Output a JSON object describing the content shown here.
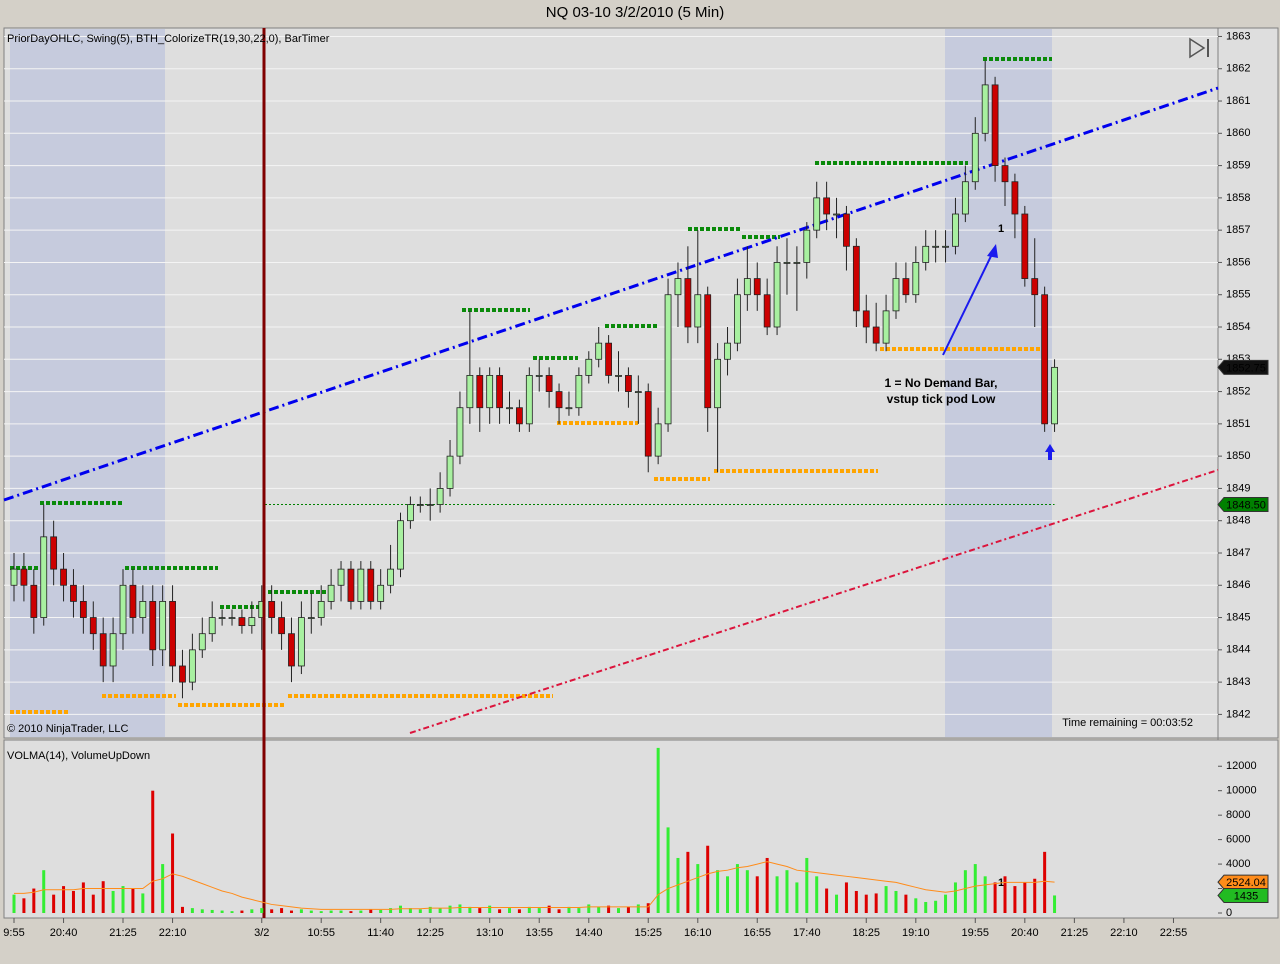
{
  "window_title": "NQ 03-10  3/2/2010 (5 Min)",
  "chart_data": [
    {
      "type": "candlestick",
      "title": "PriorDayOHLC, Swing(5), BTH_ColorizeTR(19,30,22,0), BarTimer",
      "copyright": "© 2010 NinjaTrader, LLC",
      "bar_timer": "Time remaining = 00:03:52",
      "annotations": [
        "1 = No Demand Bar,",
        "vstup tick pod Low",
        "1"
      ],
      "up_color": "#a8f0a0",
      "down_color": "#cc0000",
      "ylim": [
        1841.3,
        1863.2
      ],
      "yticks": [
        1842,
        1843,
        1844,
        1845,
        1846,
        1847,
        1848,
        1849,
        1850,
        1851,
        1852,
        1853,
        1854,
        1855,
        1856,
        1857,
        1858,
        1859,
        1860,
        1861,
        1862,
        1863
      ],
      "grid": true,
      "reference_line": {
        "value": 1848.5,
        "label": "1848.50",
        "color": "#008000"
      },
      "open": [
        1846,
        1846.5,
        1846,
        1845,
        1847.5,
        1846.5,
        1846,
        1845.5,
        1845,
        1844.5,
        1843.5,
        1844.5,
        1846,
        1845,
        1845.5,
        1844,
        1845.5,
        1843.5,
        1843,
        1844,
        1844.5,
        1845,
        1845,
        1845,
        1844.75,
        1845,
        1845.5,
        1845,
        1844.5,
        1843.5,
        1845,
        1845,
        1845.5,
        1846,
        1846.5,
        1845.5,
        1846.5,
        1845.5,
        1846,
        1846.5,
        1848,
        1848.5,
        1848.5,
        1848.5,
        1849,
        1850,
        1851.5,
        1852.5,
        1851.5,
        1852.5,
        1851.5,
        1851.5,
        1851,
        1852.5,
        1852.5,
        1852,
        1851.5,
        1851.5,
        1852.5,
        1853,
        1853.5,
        1852.5,
        1852.5,
        1852,
        1852,
        1850,
        1851,
        1855,
        1855.5,
        1854,
        1855,
        1851.5,
        1853,
        1853.5,
        1855,
        1855.5,
        1855,
        1854,
        1856,
        1856,
        1856,
        1857,
        1858,
        1857.5,
        1857.5,
        1856.5,
        1854.5,
        1854,
        1853.5,
        1854.5,
        1855.5,
        1855,
        1856,
        1856.5,
        1856.5,
        1856.5,
        1857.5,
        1858.5,
        1860,
        1861.5,
        1859,
        1858.5,
        1857.5,
        1855.5,
        1855,
        1851,
        null,
        null,
        null,
        null,
        null,
        null,
        null,
        null,
        null,
        null,
        null,
        null,
        null,
        null,
        null,
        null
      ],
      "high": [
        1847,
        1847,
        1846.5,
        1848.5,
        1848,
        1847,
        1846.5,
        1846,
        1845.5,
        1845,
        1845,
        1846.5,
        1846.5,
        1846,
        1846,
        1846,
        1846,
        1844,
        1844.5,
        1845,
        1845.5,
        1845.25,
        1845.25,
        1845.25,
        1845.5,
        1846,
        1846,
        1845.5,
        1845,
        1845.5,
        1845.75,
        1846,
        1846.5,
        1846.75,
        1846.75,
        1846.75,
        1846.75,
        1846.5,
        1847.25,
        1848.25,
        1848.75,
        1848.75,
        1849,
        1849.5,
        1850.5,
        1852,
        1854.5,
        1852.75,
        1852.75,
        1852.75,
        1852,
        1851.75,
        1852.75,
        1853,
        1852.75,
        1852.25,
        1852,
        1852.75,
        1853.25,
        1854,
        1853.75,
        1853.25,
        1852.75,
        1852.5,
        1852.25,
        1851.5,
        1855.5,
        1856,
        1856.5,
        1857,
        1855.25,
        1853.5,
        1854,
        1855.5,
        1856.5,
        1856,
        1855.5,
        1856.5,
        1856.75,
        1856.5,
        1857.25,
        1858.5,
        1858.5,
        1858,
        1857.75,
        1856.75,
        1855,
        1854.75,
        1855,
        1856,
        1856,
        1856.5,
        1857,
        1857,
        1857,
        1858,
        1859,
        1860.5,
        1862.25,
        1861.75,
        1859.25,
        1858.75,
        1857.75,
        1856.75,
        1855.25,
        1853,
        null,
        null,
        null,
        null,
        null,
        null,
        null,
        null,
        null,
        null,
        null,
        null,
        null,
        null,
        null,
        null
      ],
      "low": [
        1845.5,
        1845.5,
        1844.5,
        1844.75,
        1846,
        1845.5,
        1845,
        1844.5,
        1844,
        1843,
        1843,
        1844,
        1844.5,
        1844.5,
        1843.5,
        1843.5,
        1843,
        1842.5,
        1842.75,
        1843.75,
        1844.25,
        1844.75,
        1844.75,
        1844.5,
        1844.5,
        1844,
        1844.5,
        1844,
        1843,
        1843.25,
        1844.5,
        1844.75,
        1845.25,
        1845.5,
        1845.25,
        1845.25,
        1845.25,
        1845.25,
        1845.75,
        1846.25,
        1847.75,
        1848.25,
        1848,
        1848.25,
        1848.75,
        1849.75,
        1851,
        1850.75,
        1851,
        1851,
        1851,
        1850.75,
        1850.75,
        1852,
        1851.5,
        1851,
        1851.25,
        1851.25,
        1852.25,
        1852.75,
        1852.25,
        1852,
        1851.5,
        1851,
        1849.5,
        1849.75,
        1850.75,
        1854,
        1853.5,
        1853.5,
        1850.75,
        1849.5,
        1852.5,
        1853.25,
        1854.5,
        1854.5,
        1853.75,
        1853.75,
        1855,
        1854.5,
        1855.5,
        1856.75,
        1857,
        1856.75,
        1855.75,
        1854,
        1853.5,
        1853.25,
        1853.25,
        1854.25,
        1854.75,
        1854.75,
        1855.75,
        1856,
        1856,
        1856.25,
        1857.25,
        1858.25,
        1859.75,
        1858.5,
        1857.75,
        1856.75,
        1855.25,
        1854,
        1850.75,
        1850.75,
        null,
        null,
        null,
        null,
        null,
        null,
        null,
        null,
        null,
        null,
        null,
        null,
        null,
        null,
        null,
        null
      ],
      "close": [
        1846.5,
        1846,
        1845,
        1847.5,
        1846.5,
        1846,
        1845.5,
        1845,
        1844.5,
        1843.5,
        1844.5,
        1846,
        1845,
        1845.5,
        1844,
        1845.5,
        1843.5,
        1843,
        1844,
        1844.5,
        1845,
        1845,
        1845,
        1844.75,
        1845,
        1845.5,
        1845,
        1844.5,
        1843.5,
        1845,
        1845,
        1845.5,
        1846,
        1846.5,
        1845.5,
        1846.5,
        1845.5,
        1846,
        1846.5,
        1848,
        1848.5,
        1848.5,
        1848.5,
        1849,
        1850,
        1851.5,
        1852.5,
        1851.5,
        1852.5,
        1851.5,
        1851.5,
        1851,
        1852.5,
        1852.5,
        1852,
        1851.5,
        1851.5,
        1852.5,
        1853,
        1853.5,
        1852.5,
        1852.5,
        1852,
        1852,
        1850,
        1851,
        1855,
        1855.5,
        1854,
        1855,
        1851.5,
        1853,
        1853.5,
        1855,
        1855.5,
        1855,
        1854,
        1856,
        1856,
        1856,
        1857,
        1858,
        1857.5,
        1857.5,
        1856.5,
        1854.5,
        1854,
        1853.5,
        1854.5,
        1855.5,
        1855,
        1856,
        1856.5,
        1856.5,
        1856.5,
        1857.5,
        1858.5,
        1860,
        1861.5,
        1859,
        1858.5,
        1857.5,
        1855.5,
        1855,
        1851,
        1852.75,
        null,
        null,
        null,
        null,
        null,
        null,
        null,
        null,
        null,
        null,
        null,
        null,
        null,
        null,
        null,
        null
      ]
    },
    {
      "type": "bar",
      "title": "VOLMA(14), VolumeUpDown",
      "annotations": [
        "1"
      ],
      "up_color": "#33ee33",
      "down_color": "#dd0000",
      "ylim": [
        0,
        13900
      ],
      "yticks": [
        0,
        2000,
        4000,
        6000,
        8000,
        10000,
        12000
      ],
      "grid": true,
      "categories": [
        "9:55",
        null,
        null,
        null,
        null,
        "20:40",
        null,
        null,
        null,
        null,
        null,
        "21:25",
        null,
        null,
        null,
        null,
        "22:10",
        null,
        null,
        null,
        null,
        null,
        null,
        null,
        null,
        "3/2",
        null,
        null,
        null,
        null,
        null,
        "10:55",
        null,
        null,
        null,
        null,
        null,
        "11:40",
        null,
        null,
        null,
        null,
        "12:25",
        null,
        null,
        null,
        null,
        null,
        "13:10",
        null,
        null,
        null,
        null,
        "13:55",
        null,
        null,
        null,
        null,
        "14:40",
        null,
        null,
        null,
        null,
        null,
        "15:25",
        null,
        null,
        null,
        null,
        "16:10",
        null,
        null,
        null,
        null,
        null,
        "16:55",
        null,
        null,
        null,
        null,
        "17:40",
        null,
        null,
        null,
        null,
        null,
        "18:25",
        null,
        null,
        null,
        null,
        "19:10",
        null,
        null,
        null,
        null,
        null,
        "19:55",
        null,
        null,
        null,
        null,
        "20:40",
        null,
        null,
        null,
        null,
        "21:25",
        null,
        null,
        null,
        null,
        "22:10",
        null,
        null,
        null,
        null,
        "22:55",
        null,
        null,
        null,
        null
      ],
      "values": [
        1500,
        1200,
        2000,
        3500,
        1500,
        2200,
        1800,
        2500,
        1500,
        2600,
        1800,
        2200,
        2000,
        1600,
        10000,
        4000,
        6500,
        500,
        400,
        300,
        250,
        200,
        150,
        200,
        300,
        400,
        300,
        400,
        200,
        300,
        200,
        150,
        200,
        200,
        150,
        200,
        300,
        250,
        400,
        600,
        400,
        300,
        500,
        400,
        600,
        700,
        500,
        400,
        600,
        300,
        400,
        300,
        500,
        400,
        600,
        300,
        500,
        400,
        700,
        500,
        600,
        400,
        500,
        700,
        800,
        13500,
        7000,
        4500,
        5000,
        4000,
        5500,
        3500,
        3000,
        4000,
        3500,
        3000,
        4500,
        3000,
        3500,
        2500,
        4500,
        3000,
        2000,
        1500,
        2500,
        1800,
        1500,
        1600,
        2200,
        1800,
        1500,
        1200,
        900,
        1000,
        1500,
        2500,
        3500,
        4000,
        3000,
        2500,
        3000,
        2200,
        2500,
        2800,
        5000,
        1435,
        null,
        null,
        null,
        null,
        null,
        null,
        null,
        null,
        null,
        null,
        null,
        null,
        null,
        null,
        null,
        null
      ],
      "series": [
        {
          "color": "#ff8c1a",
          "values": [
            1600,
            1600,
            1700,
            1900,
            1900,
            1900,
            1900,
            2000,
            2000,
            2000,
            2000,
            2000,
            2000,
            2000,
            2600,
            2800,
            3200,
            3000,
            2700,
            2400,
            2100,
            1800,
            1600,
            1300,
            1100,
            900,
            700,
            600,
            500,
            400,
            350,
            300,
            300,
            300,
            300,
            300,
            300,
            300,
            300,
            350,
            350,
            350,
            400,
            400,
            400,
            450,
            450,
            450,
            450,
            450,
            450,
            450,
            450,
            450,
            450,
            450,
            450,
            450,
            500,
            500,
            500,
            500,
            500,
            500,
            500,
            1500,
            2000,
            2300,
            2600,
            2900,
            3200,
            3400,
            3500,
            3700,
            3800,
            4000,
            4200,
            4000,
            3800,
            3500,
            3400,
            3300,
            3200,
            3100,
            3000,
            2900,
            2800,
            2700,
            2600,
            2500,
            2300,
            2100,
            1900,
            1800,
            1700,
            1800,
            2000,
            2200,
            2300,
            2400,
            2500,
            2500,
            2500,
            2500,
            2600,
            2524.04,
            null,
            null,
            null,
            null,
            null,
            null,
            null,
            null,
            null,
            null,
            null,
            null,
            null,
            null,
            null,
            null
          ]
        }
      ]
    }
  ]
}
